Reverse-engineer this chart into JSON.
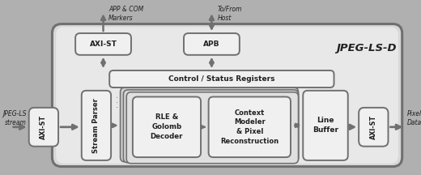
{
  "bg_color": "#b0b0b0",
  "outer_box_fc": "#e0e0e0",
  "outer_box_ec": "#606060",
  "inner_box_fc": "#f0f0f0",
  "box_fill_light": "#f0f0f0",
  "box_fill_mid": "#d8d8d8",
  "box_edge": "#707070",
  "font_color": "#202020",
  "arrow_color": "#707070",
  "title": "JPEG-LS-D",
  "app_com_text": "APP & COM\nMarkers",
  "to_from_text": "To/From\nHost",
  "jpeg_ls_text": "JPEG-LS\nstream",
  "pixel_data_text": "Pixel\nData",
  "axi_st_top_label": "AXI-ST",
  "apb_label": "APB",
  "ctrl_label": "Control / Status Registers",
  "stream_parser_label": "Stream Parser",
  "rle_label": "RLE &\nGolomb\nDecoder",
  "context_label": "Context\nModeler\n& Pixel\nReconstruction",
  "line_buffer_label": "Line\nBuffer",
  "axi_st_left_label": "AXI-ST",
  "axi_st_right_label": "AXI-ST"
}
